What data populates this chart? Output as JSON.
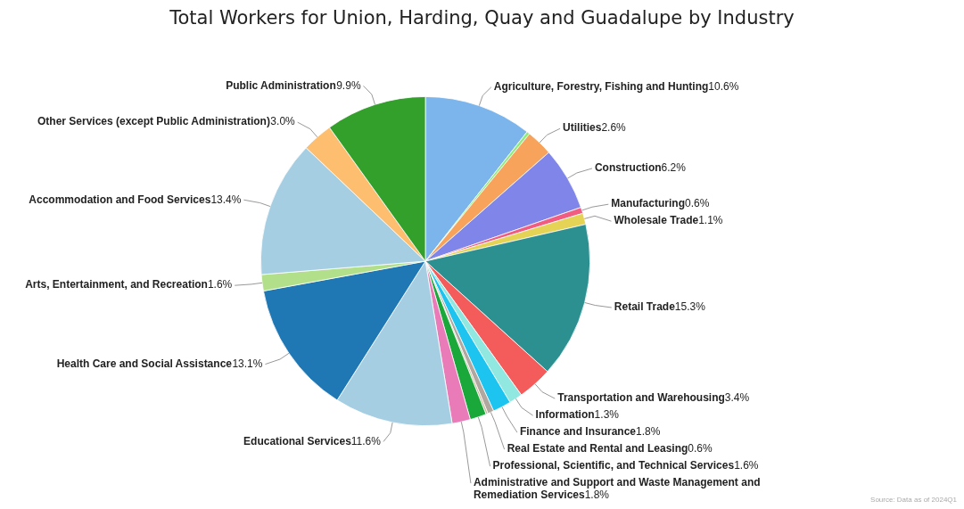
{
  "chart_data": {
    "type": "pie",
    "title": "Total Workers for Union, Harding, Quay and Guadalupe by Industry",
    "categories": [
      "Agriculture, Forestry, Fishing and Hunting",
      null,
      "Utilities",
      "Construction",
      "Manufacturing",
      "Wholesale Trade",
      "Retail Trade",
      "Transportation and Warehousing",
      "Information",
      "Finance and Insurance",
      "Real Estate and Rental and Leasing",
      null,
      "Professional, Scientific, and Technical Services",
      "Administrative and Support and Waste Management and Remediation Services",
      "Educational Services",
      "Health Care and Social Assistance",
      "Arts, Entertainment, and Recreation",
      "Accommodation and Food Services",
      "Other Services (except Public Administration)",
      "Public Administration"
    ],
    "values": [
      10.6,
      0.3,
      2.6,
      6.2,
      0.6,
      1.1,
      15.3,
      3.4,
      1.3,
      1.8,
      0.6,
      0.2,
      1.6,
      1.8,
      11.6,
      13.1,
      1.6,
      13.4,
      3.0,
      9.9
    ],
    "value_labels": [
      "10.6%",
      null,
      "2.6%",
      "6.2%",
      "0.6%",
      "1.1%",
      "15.3%",
      "3.4%",
      "1.3%",
      "1.8%",
      "0.6%",
      null,
      "1.6%",
      "1.8%",
      "11.6%",
      "13.1%",
      "1.6%",
      "13.4%",
      "3.0%",
      "9.9%"
    ],
    "colors": [
      "#7cb5ec",
      "#90ed7d",
      "#f7a35c",
      "#8085e9",
      "#f15c80",
      "#e4d354",
      "#2b908f",
      "#f45b5b",
      "#91e8e1",
      "#1ec4f0",
      "#b0a8a0",
      "#c8b89c",
      "#1aa83a",
      "#e87bb8",
      "#a6cee3",
      "#1f78b4",
      "#b2df8a",
      "#a6cee3",
      "#fdbf6f",
      "#33a02c"
    ],
    "annotations": [
      "Source: Data as of 2024Q1"
    ]
  }
}
